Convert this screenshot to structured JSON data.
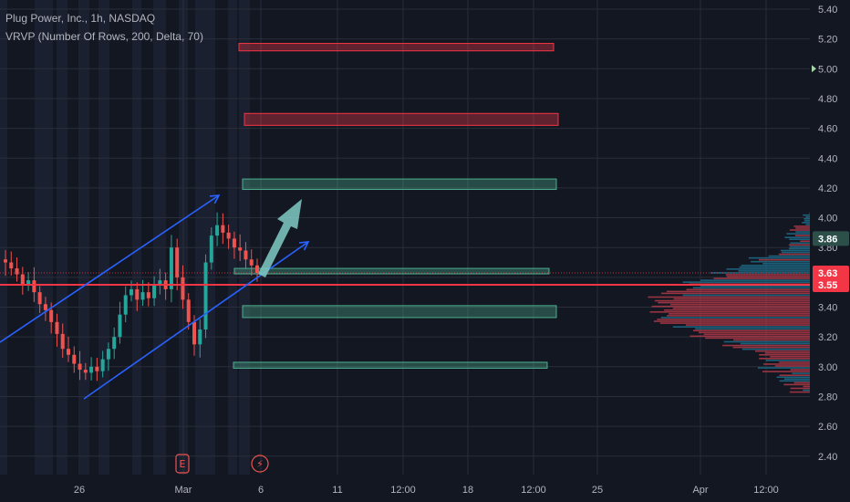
{
  "legend": {
    "title": "Plug Power, Inc., 1h, NASDAQ",
    "indicator": "VRVP (Number Of Rows, 200, Delta, 70)"
  },
  "colors": {
    "background": "#131722",
    "grid": "#2a2e39",
    "up": "#26a69a",
    "down": "#ef5350",
    "trend": "#2962ff",
    "price_line": "#f23645",
    "supply_zone": "#f23645",
    "demand_zone": "#4caf8f",
    "arrow": "#80cbc4"
  },
  "chart_data": {
    "type": "candlestick",
    "title": "Plug Power, Inc., 1h, NASDAQ",
    "ylim": [
      2.3,
      5.45
    ],
    "y_ticks": [
      "5.40",
      "5.20",
      "5.00",
      "4.80",
      "4.60",
      "4.40",
      "4.20",
      "4.00",
      "3.80",
      "3.60",
      "3.40",
      "3.20",
      "3.00",
      "2.80",
      "2.60",
      "2.40"
    ],
    "x_ticks": [
      "26",
      "Mar",
      "6",
      "11",
      "12:00",
      "18",
      "12:00",
      "25",
      "Apr",
      "12:00"
    ],
    "price_labels": [
      {
        "value": 5.0,
        "text": "5.00",
        "kind": "alert"
      },
      {
        "value": 3.86,
        "text": "3.86",
        "kind": "high"
      },
      {
        "value": 3.63,
        "text": "3.63",
        "kind": "last"
      },
      {
        "value": 3.55,
        "text": "3.55",
        "kind": "line"
      }
    ],
    "horizontal_line": 3.55,
    "events": [
      {
        "at": "Mar",
        "label": "E",
        "kind": "earnings"
      },
      {
        "at": "6",
        "label": "⚡",
        "kind": "split"
      }
    ],
    "zones": [
      {
        "type": "supply",
        "low": 5.12,
        "high": 5.17
      },
      {
        "type": "supply",
        "low": 4.62,
        "high": 4.7
      },
      {
        "type": "demand",
        "low": 4.19,
        "high": 4.26
      },
      {
        "type": "demand",
        "low": 3.63,
        "high": 3.66
      },
      {
        "type": "demand",
        "low": 3.33,
        "high": 3.41
      },
      {
        "type": "demand",
        "low": 2.99,
        "high": 3.03
      }
    ],
    "channel": {
      "upper": [
        {
          "x": "Feb 20",
          "y": 3.18
        },
        {
          "x": "Mar 3",
          "y": 4.22
        }
      ],
      "lower": [
        {
          "x": "Feb 25",
          "y": 2.82
        },
        {
          "x": "Mar 8",
          "y": 3.84
        }
      ]
    },
    "candles_close": [
      3.7,
      3.66,
      3.62,
      3.55,
      3.58,
      3.5,
      3.42,
      3.38,
      3.3,
      3.22,
      3.12,
      3.08,
      3.02,
      2.98,
      2.96,
      3.0,
      2.97,
      3.05,
      3.12,
      3.2,
      3.35,
      3.48,
      3.52,
      3.45,
      3.5,
      3.46,
      3.55,
      3.58,
      3.52,
      3.8,
      3.6,
      3.45,
      3.3,
      3.15,
      3.25,
      3.7,
      3.88,
      3.95,
      3.9,
      3.86,
      3.8,
      3.78,
      3.72,
      3.68,
      3.63
    ]
  }
}
